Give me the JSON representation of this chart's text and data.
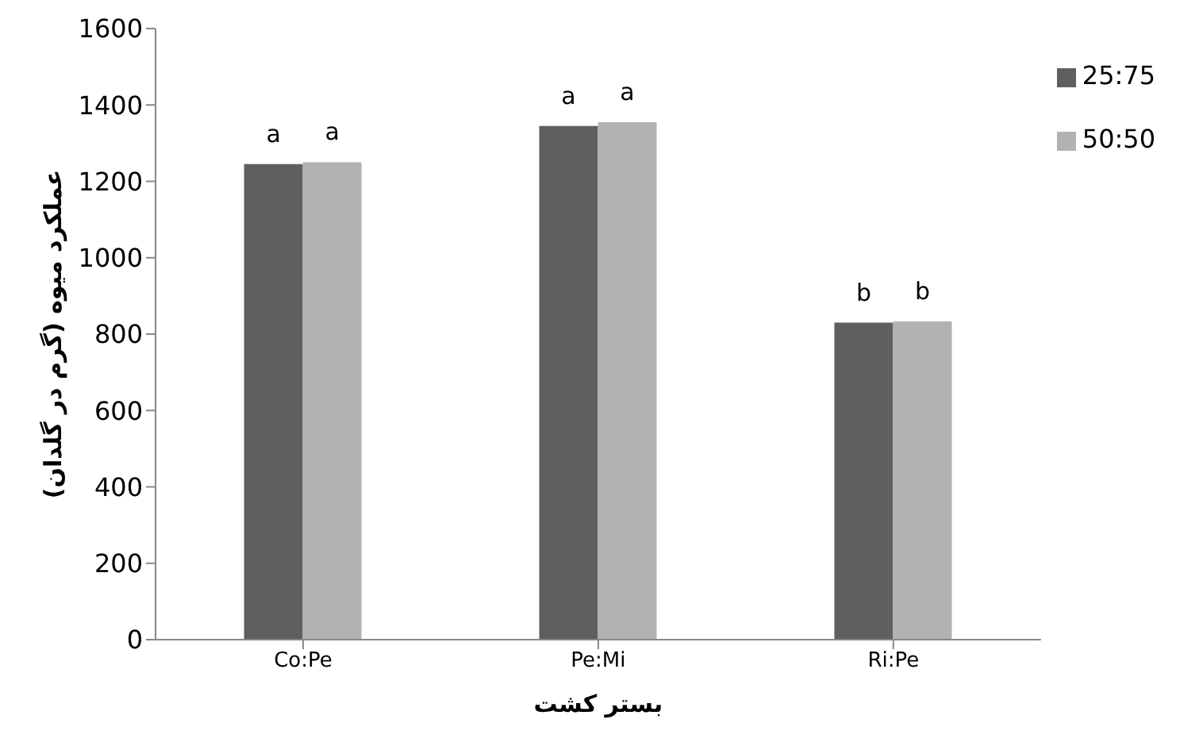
{
  "chart_data": {
    "type": "bar",
    "xlabel": "بستر کشت",
    "ylabel": "عملکرد میوه (گرم در گلدان)",
    "categories": [
      "Co:Pe",
      "Pe:Mi",
      "Ri:Pe"
    ],
    "series": [
      {
        "name": "25:75",
        "color": "#5f5f5f",
        "values": [
          1245,
          1345,
          830
        ],
        "value_labels": [
          "a",
          "a",
          "b"
        ]
      },
      {
        "name": "50:50",
        "color": "#b2b2b2",
        "values": [
          1250,
          1355,
          833
        ],
        "value_labels": [
          "a",
          "a",
          "b"
        ]
      }
    ],
    "ylim": [
      0,
      1600
    ],
    "yticks": [
      0,
      200,
      400,
      600,
      800,
      1000,
      1200,
      1400,
      1600
    ],
    "grid": false,
    "legend": "top right"
  }
}
